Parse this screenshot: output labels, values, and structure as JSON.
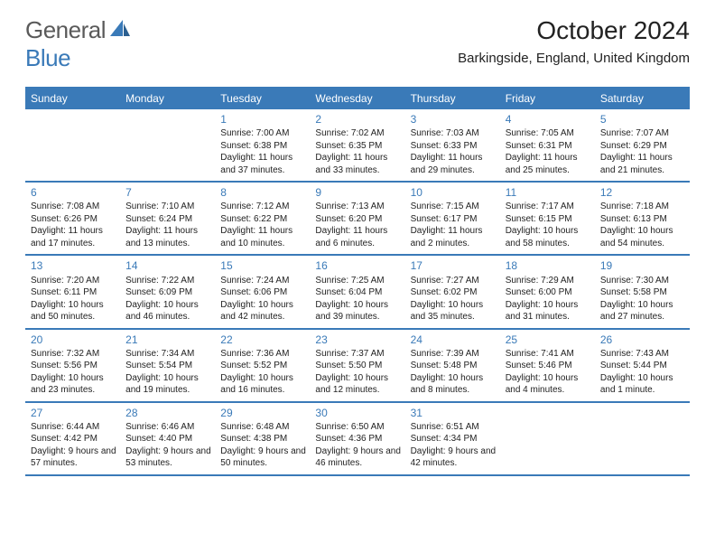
{
  "logo": {
    "text1": "General",
    "text2": "Blue"
  },
  "title": "October 2024",
  "location": "Barkingside, England, United Kingdom",
  "colors": {
    "accent": "#3a7ab8",
    "text": "#222222",
    "logo_gray": "#5a5a5a",
    "background": "#ffffff"
  },
  "dow": [
    "Sunday",
    "Monday",
    "Tuesday",
    "Wednesday",
    "Thursday",
    "Friday",
    "Saturday"
  ],
  "weeks": [
    [
      {
        "n": "",
        "sr": "",
        "ss": "",
        "dl": ""
      },
      {
        "n": "",
        "sr": "",
        "ss": "",
        "dl": ""
      },
      {
        "n": "1",
        "sr": "Sunrise: 7:00 AM",
        "ss": "Sunset: 6:38 PM",
        "dl": "Daylight: 11 hours and 37 minutes."
      },
      {
        "n": "2",
        "sr": "Sunrise: 7:02 AM",
        "ss": "Sunset: 6:35 PM",
        "dl": "Daylight: 11 hours and 33 minutes."
      },
      {
        "n": "3",
        "sr": "Sunrise: 7:03 AM",
        "ss": "Sunset: 6:33 PM",
        "dl": "Daylight: 11 hours and 29 minutes."
      },
      {
        "n": "4",
        "sr": "Sunrise: 7:05 AM",
        "ss": "Sunset: 6:31 PM",
        "dl": "Daylight: 11 hours and 25 minutes."
      },
      {
        "n": "5",
        "sr": "Sunrise: 7:07 AM",
        "ss": "Sunset: 6:29 PM",
        "dl": "Daylight: 11 hours and 21 minutes."
      }
    ],
    [
      {
        "n": "6",
        "sr": "Sunrise: 7:08 AM",
        "ss": "Sunset: 6:26 PM",
        "dl": "Daylight: 11 hours and 17 minutes."
      },
      {
        "n": "7",
        "sr": "Sunrise: 7:10 AM",
        "ss": "Sunset: 6:24 PM",
        "dl": "Daylight: 11 hours and 13 minutes."
      },
      {
        "n": "8",
        "sr": "Sunrise: 7:12 AM",
        "ss": "Sunset: 6:22 PM",
        "dl": "Daylight: 11 hours and 10 minutes."
      },
      {
        "n": "9",
        "sr": "Sunrise: 7:13 AM",
        "ss": "Sunset: 6:20 PM",
        "dl": "Daylight: 11 hours and 6 minutes."
      },
      {
        "n": "10",
        "sr": "Sunrise: 7:15 AM",
        "ss": "Sunset: 6:17 PM",
        "dl": "Daylight: 11 hours and 2 minutes."
      },
      {
        "n": "11",
        "sr": "Sunrise: 7:17 AM",
        "ss": "Sunset: 6:15 PM",
        "dl": "Daylight: 10 hours and 58 minutes."
      },
      {
        "n": "12",
        "sr": "Sunrise: 7:18 AM",
        "ss": "Sunset: 6:13 PM",
        "dl": "Daylight: 10 hours and 54 minutes."
      }
    ],
    [
      {
        "n": "13",
        "sr": "Sunrise: 7:20 AM",
        "ss": "Sunset: 6:11 PM",
        "dl": "Daylight: 10 hours and 50 minutes."
      },
      {
        "n": "14",
        "sr": "Sunrise: 7:22 AM",
        "ss": "Sunset: 6:09 PM",
        "dl": "Daylight: 10 hours and 46 minutes."
      },
      {
        "n": "15",
        "sr": "Sunrise: 7:24 AM",
        "ss": "Sunset: 6:06 PM",
        "dl": "Daylight: 10 hours and 42 minutes."
      },
      {
        "n": "16",
        "sr": "Sunrise: 7:25 AM",
        "ss": "Sunset: 6:04 PM",
        "dl": "Daylight: 10 hours and 39 minutes."
      },
      {
        "n": "17",
        "sr": "Sunrise: 7:27 AM",
        "ss": "Sunset: 6:02 PM",
        "dl": "Daylight: 10 hours and 35 minutes."
      },
      {
        "n": "18",
        "sr": "Sunrise: 7:29 AM",
        "ss": "Sunset: 6:00 PM",
        "dl": "Daylight: 10 hours and 31 minutes."
      },
      {
        "n": "19",
        "sr": "Sunrise: 7:30 AM",
        "ss": "Sunset: 5:58 PM",
        "dl": "Daylight: 10 hours and 27 minutes."
      }
    ],
    [
      {
        "n": "20",
        "sr": "Sunrise: 7:32 AM",
        "ss": "Sunset: 5:56 PM",
        "dl": "Daylight: 10 hours and 23 minutes."
      },
      {
        "n": "21",
        "sr": "Sunrise: 7:34 AM",
        "ss": "Sunset: 5:54 PM",
        "dl": "Daylight: 10 hours and 19 minutes."
      },
      {
        "n": "22",
        "sr": "Sunrise: 7:36 AM",
        "ss": "Sunset: 5:52 PM",
        "dl": "Daylight: 10 hours and 16 minutes."
      },
      {
        "n": "23",
        "sr": "Sunrise: 7:37 AM",
        "ss": "Sunset: 5:50 PM",
        "dl": "Daylight: 10 hours and 12 minutes."
      },
      {
        "n": "24",
        "sr": "Sunrise: 7:39 AM",
        "ss": "Sunset: 5:48 PM",
        "dl": "Daylight: 10 hours and 8 minutes."
      },
      {
        "n": "25",
        "sr": "Sunrise: 7:41 AM",
        "ss": "Sunset: 5:46 PM",
        "dl": "Daylight: 10 hours and 4 minutes."
      },
      {
        "n": "26",
        "sr": "Sunrise: 7:43 AM",
        "ss": "Sunset: 5:44 PM",
        "dl": "Daylight: 10 hours and 1 minute."
      }
    ],
    [
      {
        "n": "27",
        "sr": "Sunrise: 6:44 AM",
        "ss": "Sunset: 4:42 PM",
        "dl": "Daylight: 9 hours and 57 minutes."
      },
      {
        "n": "28",
        "sr": "Sunrise: 6:46 AM",
        "ss": "Sunset: 4:40 PM",
        "dl": "Daylight: 9 hours and 53 minutes."
      },
      {
        "n": "29",
        "sr": "Sunrise: 6:48 AM",
        "ss": "Sunset: 4:38 PM",
        "dl": "Daylight: 9 hours and 50 minutes."
      },
      {
        "n": "30",
        "sr": "Sunrise: 6:50 AM",
        "ss": "Sunset: 4:36 PM",
        "dl": "Daylight: 9 hours and 46 minutes."
      },
      {
        "n": "31",
        "sr": "Sunrise: 6:51 AM",
        "ss": "Sunset: 4:34 PM",
        "dl": "Daylight: 9 hours and 42 minutes."
      },
      {
        "n": "",
        "sr": "",
        "ss": "",
        "dl": ""
      },
      {
        "n": "",
        "sr": "",
        "ss": "",
        "dl": ""
      }
    ]
  ]
}
